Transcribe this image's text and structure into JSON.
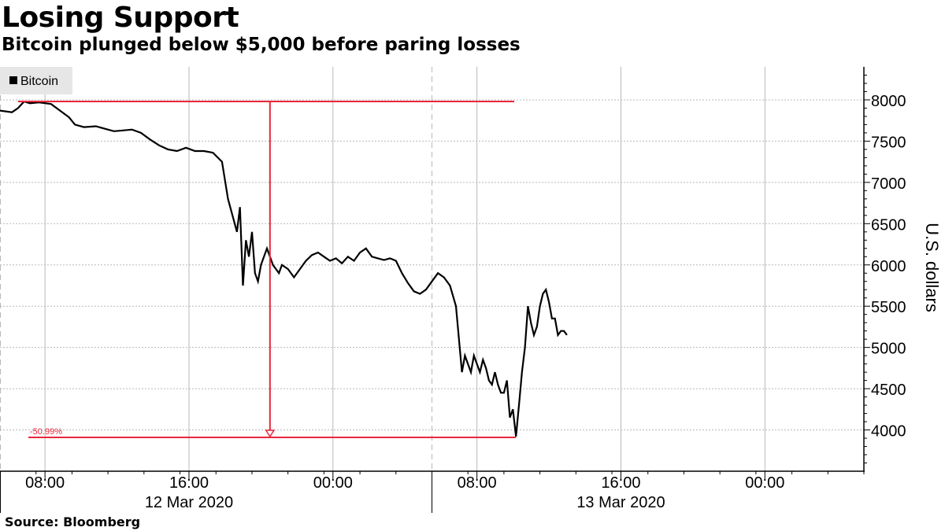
{
  "title": "Losing Support",
  "subtitle": "Bitcoin plunged below $5,000 before paring losses",
  "source": "Source: Bloomberg",
  "colors": {
    "line": "#000000",
    "annotation": "#e8283c",
    "grid": "#b8b8b8",
    "legend_bg": "#e6e6e6"
  },
  "chart_data": {
    "type": "line",
    "ylabel": "U.S. dollars",
    "ylim": [
      3500,
      8400
    ],
    "xlim": [
      "2020-03-12 05:30",
      "2020-03-14 05:30"
    ],
    "y_ticks": [
      "8000",
      "7500",
      "7000",
      "6500",
      "6000",
      "5500",
      "5000",
      "4500",
      "4000"
    ],
    "x_ticks": [
      "08:00",
      "16:00",
      "00:00",
      "08:00",
      "16:00",
      "00:00"
    ],
    "date_labels": [
      "12 Mar 2020",
      "13 Mar 2020"
    ],
    "grid": true,
    "legend_position": "top-left",
    "annotation": {
      "label": "-50.99%",
      "from_value": 7980,
      "to_value": 3910
    },
    "series": [
      {
        "name": "Bitcoin",
        "time": [
          "2020-03-12 05:30",
          "2020-03-12 06:10",
          "2020-03-12 06:30",
          "2020-03-12 06:50",
          "2020-03-12 07:10",
          "2020-03-12 07:40",
          "2020-03-12 08:20",
          "2020-03-12 08:50",
          "2020-03-12 09:20",
          "2020-03-12 09:40",
          "2020-03-12 10:10",
          "2020-03-12 10:50",
          "2020-03-12 11:20",
          "2020-03-12 11:50",
          "2020-03-12 12:20",
          "2020-03-12 12:50",
          "2020-03-12 13:20",
          "2020-03-12 13:50",
          "2020-03-12 14:20",
          "2020-03-12 14:50",
          "2020-03-12 15:20",
          "2020-03-12 15:50",
          "2020-03-12 16:20",
          "2020-03-12 16:50",
          "2020-03-12 17:20",
          "2020-03-12 17:50",
          "2020-03-12 18:10",
          "2020-03-12 18:40",
          "2020-03-12 18:50",
          "2020-03-12 19:00",
          "2020-03-12 19:10",
          "2020-03-12 19:20",
          "2020-03-12 19:30",
          "2020-03-12 19:40",
          "2020-03-12 19:50",
          "2020-03-12 20:00",
          "2020-03-12 20:10",
          "2020-03-12 20:20",
          "2020-03-12 20:30",
          "2020-03-12 20:40",
          "2020-03-12 20:50",
          "2020-03-12 21:00",
          "2020-03-12 21:10",
          "2020-03-12 21:30",
          "2020-03-12 21:50",
          "2020-03-12 22:10",
          "2020-03-12 22:30",
          "2020-03-12 22:50",
          "2020-03-12 23:10",
          "2020-03-12 23:30",
          "2020-03-12 23:50",
          "2020-03-13 00:10",
          "2020-03-13 00:30",
          "2020-03-13 00:50",
          "2020-03-13 01:10",
          "2020-03-13 01:30",
          "2020-03-13 01:50",
          "2020-03-13 02:10",
          "2020-03-13 02:30",
          "2020-03-13 02:50",
          "2020-03-13 03:10",
          "2020-03-13 03:30",
          "2020-03-13 03:50",
          "2020-03-13 04:10",
          "2020-03-13 04:30",
          "2020-03-13 04:50",
          "2020-03-13 05:10",
          "2020-03-13 05:30",
          "2020-03-13 05:50",
          "2020-03-13 06:10",
          "2020-03-13 06:30",
          "2020-03-13 06:50",
          "2020-03-13 07:10",
          "2020-03-13 07:20",
          "2020-03-13 07:30",
          "2020-03-13 07:40",
          "2020-03-13 07:50",
          "2020-03-13 08:00",
          "2020-03-13 08:10",
          "2020-03-13 08:20",
          "2020-03-13 08:30",
          "2020-03-13 08:40",
          "2020-03-13 08:50",
          "2020-03-13 09:00",
          "2020-03-13 09:10",
          "2020-03-13 09:20",
          "2020-03-13 09:30",
          "2020-03-13 09:40",
          "2020-03-13 09:50",
          "2020-03-13 10:00",
          "2020-03-13 10:10",
          "2020-03-13 10:20",
          "2020-03-13 10:30",
          "2020-03-13 10:40",
          "2020-03-13 10:50",
          "2020-03-13 11:00",
          "2020-03-13 11:10",
          "2020-03-13 11:20",
          "2020-03-13 11:30",
          "2020-03-13 11:40",
          "2020-03-13 11:50",
          "2020-03-13 12:00",
          "2020-03-13 12:10",
          "2020-03-13 12:20",
          "2020-03-13 12:30",
          "2020-03-13 12:40",
          "2020-03-13 12:50",
          "2020-03-13 13:00"
        ],
        "values": [
          7870,
          7850,
          7900,
          7980,
          7960,
          7970,
          7950,
          7870,
          7790,
          7700,
          7670,
          7680,
          7650,
          7620,
          7630,
          7640,
          7600,
          7520,
          7450,
          7400,
          7380,
          7420,
          7380,
          7380,
          7360,
          7250,
          6800,
          6400,
          6700,
          5750,
          6300,
          6100,
          6400,
          5900,
          5800,
          6000,
          6100,
          6200,
          6100,
          6000,
          5950,
          5900,
          6000,
          5950,
          5850,
          5950,
          6050,
          6120,
          6150,
          6100,
          6050,
          6080,
          6020,
          6100,
          6050,
          6150,
          6200,
          6100,
          6080,
          6060,
          6080,
          6050,
          5900,
          5780,
          5680,
          5650,
          5700,
          5800,
          5900,
          5850,
          5750,
          5500,
          4700,
          4900,
          4800,
          4700,
          4900,
          4800,
          4700,
          4850,
          4750,
          4600,
          4550,
          4700,
          4550,
          4450,
          4450,
          4600,
          4150,
          4250,
          3920,
          4300,
          4700,
          5000,
          5500,
          5300,
          5150,
          5250,
          5500,
          5650,
          5700,
          5550,
          5350,
          5350,
          5150,
          5200,
          5200,
          5150
        ]
      }
    ]
  }
}
